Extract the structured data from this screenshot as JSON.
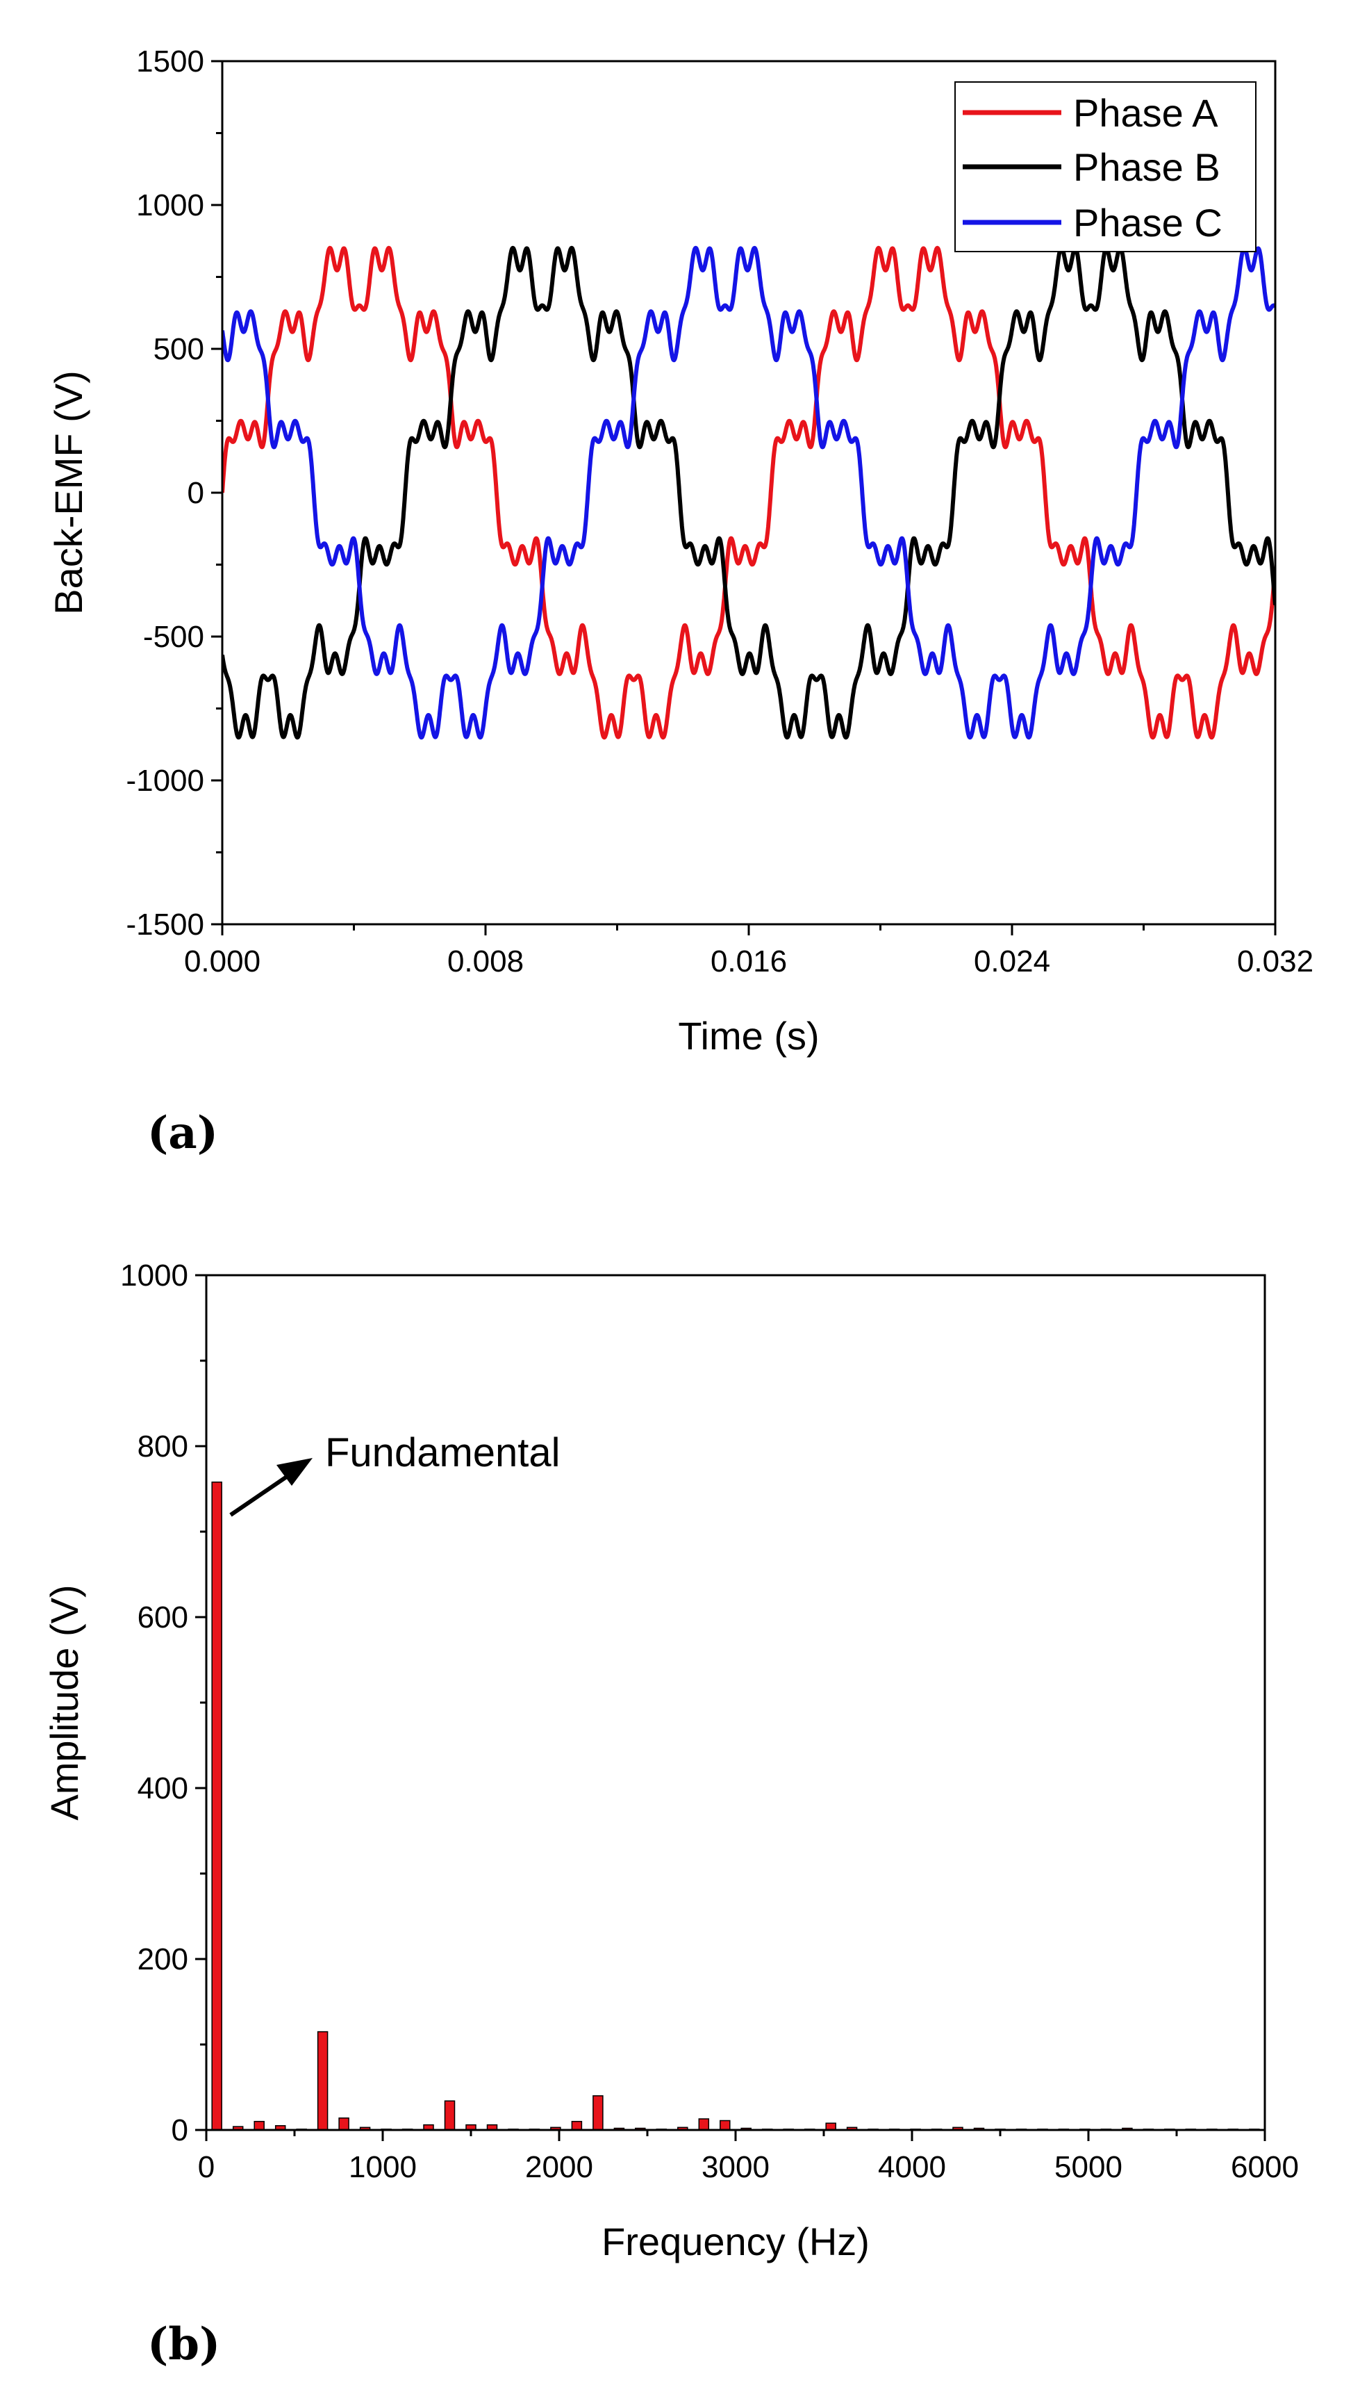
{
  "chart_data": [
    {
      "panel": "(a)",
      "type": "line",
      "xlabel": "Time (s)",
      "ylabel": "Back-EMF (V)",
      "xlim": [
        0.0,
        0.032
      ],
      "ylim": [
        -1500,
        1500
      ],
      "xticks": [
        "0.000",
        "0.008",
        "0.016",
        "0.024",
        "0.032"
      ],
      "yticks": [
        "1500",
        "1000",
        "500",
        "0",
        "-500",
        "-1000",
        "-1500"
      ],
      "legend_position": "top-right",
      "electrical_period_s": 0.01667,
      "waveform_model": {
        "fundamental_amplitude_V": 760,
        "harmonics": [
          {
            "order": 11,
            "amplitude_V": 115
          },
          {
            "order": 23,
            "amplitude_V": 34
          },
          {
            "order": 37,
            "amplitude_V": 40
          }
        ]
      },
      "series": [
        {
          "name": "Phase A",
          "color": "#e8141b",
          "phase_shift_deg": 0
        },
        {
          "name": "Phase B",
          "color": "#000000",
          "phase_shift_deg": -120
        },
        {
          "name": "Phase C",
          "color": "#1414e6",
          "phase_shift_deg": 120
        }
      ]
    },
    {
      "panel": "(b)",
      "type": "bar",
      "xlabel": "Frequency (Hz)",
      "ylabel": "Amplitude (V)",
      "xlim": [
        0,
        6000
      ],
      "ylim": [
        0,
        1000
      ],
      "xticks": [
        "0",
        "1000",
        "2000",
        "3000",
        "4000",
        "5000",
        "6000"
      ],
      "yticks": [
        "1000",
        "800",
        "600",
        "400",
        "200",
        "0"
      ],
      "bar_color": "#e8141b",
      "annotation": "Fundamental",
      "frequencies_hz": [
        60,
        180,
        300,
        420,
        540,
        660,
        780,
        900,
        1020,
        1140,
        1260,
        1380,
        1500,
        1620,
        1740,
        1860,
        1980,
        2100,
        2220,
        2340,
        2460,
        2580,
        2700,
        2820,
        2940,
        3060,
        3180,
        3300,
        3420,
        3540,
        3660,
        3780,
        3900,
        4020,
        4140,
        4260,
        4380,
        4500,
        4620,
        4740,
        4860,
        4980,
        5100,
        5220,
        5340,
        5460,
        5580,
        5700,
        5820,
        5940
      ],
      "values": [
        758,
        4,
        10,
        5,
        1,
        115,
        14,
        3,
        1,
        1,
        6,
        34,
        6,
        6,
        1,
        1,
        3,
        10,
        40,
        2,
        2,
        1,
        3,
        13,
        11,
        2,
        1,
        1,
        1,
        8,
        3,
        1,
        1,
        1,
        1,
        3,
        2,
        1,
        1,
        1,
        1,
        1,
        1,
        2,
        1,
        1,
        1,
        1,
        1,
        1
      ]
    }
  ]
}
